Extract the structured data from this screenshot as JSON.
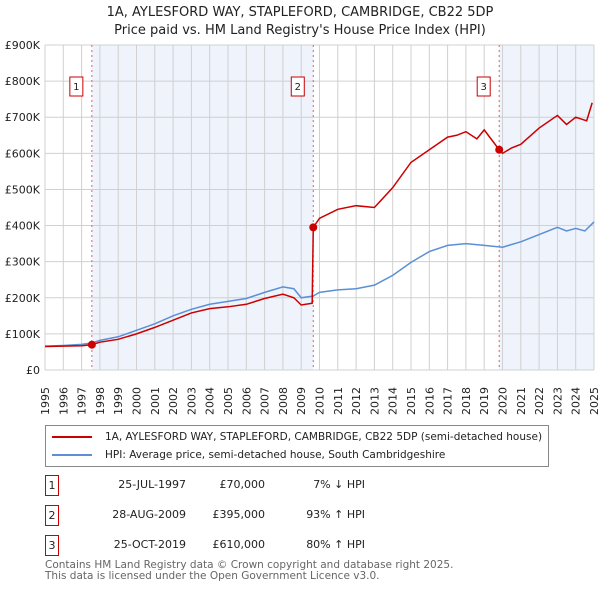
{
  "header": {
    "title": "1A, AYLESFORD WAY, STAPLEFORD, CAMBRIDGE, CB22 5DP",
    "subtitle": "Price paid vs. HM Land Registry's House Price Index (HPI)"
  },
  "chart_data": {
    "type": "line",
    "ylim": [
      0,
      900000
    ],
    "xlim": [
      1995,
      2025
    ],
    "yticks": [
      {
        "v": 0,
        "label": "£0"
      },
      {
        "v": 100000,
        "label": "£100K"
      },
      {
        "v": 200000,
        "label": "£200K"
      },
      {
        "v": 300000,
        "label": "£300K"
      },
      {
        "v": 400000,
        "label": "£400K"
      },
      {
        "v": 500000,
        "label": "£500K"
      },
      {
        "v": 600000,
        "label": "£600K"
      },
      {
        "v": 700000,
        "label": "£700K"
      },
      {
        "v": 800000,
        "label": "£800K"
      },
      {
        "v": 900000,
        "label": "£900K"
      }
    ],
    "xticks": [
      "1995",
      "1996",
      "1997",
      "1998",
      "1999",
      "2000",
      "2001",
      "2002",
      "2003",
      "2004",
      "2005",
      "2006",
      "2007",
      "2008",
      "2009",
      "2010",
      "2011",
      "2012",
      "2013",
      "2014",
      "2015",
      "2016",
      "2017",
      "2018",
      "2019",
      "2020",
      "2021",
      "2022",
      "2023",
      "2024",
      "2025"
    ],
    "series": [
      {
        "name": "1A, AYLESFORD WAY, STAPLEFORD, CAMBRIDGE, CB22 5DP (semi-detached house)",
        "color": "#cc0000",
        "x": [
          1995,
          1996,
          1997,
          1997.56,
          1998,
          1999,
          2000,
          2001,
          2002,
          2003,
          2004,
          2005,
          2006,
          2007,
          2008,
          2008.6,
          2009,
          2009.6,
          2009.66,
          2010,
          2011,
          2012,
          2013,
          2014,
          2015,
          2016,
          2017,
          2017.5,
          2018,
          2018.6,
          2019,
          2019.82,
          2020,
          2020.5,
          2021,
          2022,
          2023,
          2023.5,
          2024,
          2024.6,
          2024.9
        ],
        "y": [
          65000,
          66000,
          67000,
          70000,
          77000,
          85000,
          100000,
          118000,
          138000,
          158000,
          170000,
          175000,
          182000,
          198000,
          210000,
          200000,
          180000,
          185000,
          395000,
          420000,
          445000,
          455000,
          450000,
          505000,
          575000,
          610000,
          645000,
          650000,
          660000,
          640000,
          665000,
          610000,
          600000,
          615000,
          625000,
          670000,
          705000,
          680000,
          700000,
          690000,
          740000
        ]
      },
      {
        "name": "HPI: Average price, semi-detached house, South Cambridgeshire",
        "color": "#5b8fd6",
        "x": [
          1995,
          1996,
          1997,
          1997.56,
          1998,
          1999,
          2000,
          2001,
          2002,
          2003,
          2004,
          2005,
          2006,
          2007,
          2008,
          2008.6,
          2009,
          2009.66,
          2010,
          2011,
          2012,
          2013,
          2014,
          2015,
          2016,
          2017,
          2018,
          2019,
          2020,
          2021,
          2022,
          2023,
          2023.5,
          2024,
          2024.5,
          2025
        ],
        "y": [
          66000,
          68000,
          71000,
          75000,
          82000,
          92000,
          110000,
          128000,
          150000,
          168000,
          182000,
          190000,
          198000,
          215000,
          230000,
          225000,
          200000,
          205000,
          215000,
          222000,
          225000,
          235000,
          262000,
          298000,
          328000,
          345000,
          350000,
          345000,
          340000,
          355000,
          375000,
          395000,
          385000,
          392000,
          385000,
          410000
        ]
      }
    ],
    "sales": [
      {
        "label": "1",
        "x": 1997.56,
        "y": 70000
      },
      {
        "label": "2",
        "x": 2009.66,
        "y": 395000
      },
      {
        "label": "3",
        "x": 2019.82,
        "y": 610000
      }
    ],
    "shaded": [
      [
        1997.56,
        2009.66
      ],
      [
        2019.82,
        2025
      ]
    ]
  },
  "legend": {
    "items": [
      "1A, AYLESFORD WAY, STAPLEFORD, CAMBRIDGE, CB22 5DP (semi-detached house)",
      "HPI: Average price, semi-detached house, South Cambridgeshire"
    ]
  },
  "transactions": [
    {
      "num": "1",
      "date": "25-JUL-1997",
      "price": "£70,000",
      "hpi": "7% ↓ HPI"
    },
    {
      "num": "2",
      "date": "28-AUG-2009",
      "price": "£395,000",
      "hpi": "93% ↑ HPI"
    },
    {
      "num": "3",
      "date": "25-OCT-2019",
      "price": "£610,000",
      "hpi": "80% ↑ HPI"
    }
  ],
  "footer": {
    "line1": "Contains HM Land Registry data © Crown copyright and database right 2025.",
    "line2": "This data is licensed under the Open Government Licence v3.0."
  }
}
